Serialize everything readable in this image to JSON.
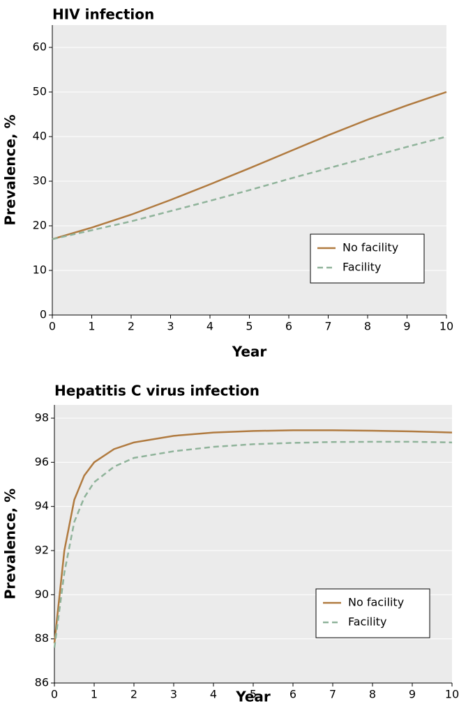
{
  "chart_data": [
    {
      "type": "line",
      "title": "HIV infection",
      "x_label": "Year",
      "y_label": "Prevalence, %",
      "x": [
        0,
        1,
        2,
        3,
        4,
        5,
        6,
        7,
        8,
        9,
        10
      ],
      "series": [
        {
          "name": "No facility",
          "color": "#b07a3f",
          "style": "solid",
          "values": [
            17,
            19.6,
            22.5,
            25.8,
            29.3,
            32.9,
            36.6,
            40.3,
            43.8,
            47,
            50
          ]
        },
        {
          "name": "Facility",
          "color": "#8fb39a",
          "style": "dashed",
          "values": [
            17,
            19,
            21,
            23.3,
            25.6,
            28,
            30.5,
            32.9,
            35.3,
            37.7,
            40
          ]
        }
      ],
      "xlim": [
        0,
        10
      ],
      "xticks": [
        0,
        1,
        2,
        3,
        4,
        5,
        6,
        7,
        8,
        9,
        10
      ],
      "ylim": [
        0,
        65
      ],
      "yticks": [
        0,
        10,
        20,
        30,
        40,
        50,
        60
      ],
      "grid": true,
      "legend": "lower right"
    },
    {
      "type": "line",
      "title": "Hepatitis C virus infection",
      "x_label": "Year",
      "y_label": "Prevalence, %",
      "x": [
        0,
        0.25,
        0.5,
        0.75,
        1,
        1.5,
        2,
        3,
        4,
        5,
        6,
        7,
        8,
        9,
        10
      ],
      "series": [
        {
          "name": "No facility",
          "color": "#b07a3f",
          "style": "solid",
          "values": [
            87.8,
            92,
            94.3,
            95.4,
            96,
            96.6,
            96.9,
            97.2,
            97.35,
            97.42,
            97.45,
            97.45,
            97.43,
            97.4,
            97.35
          ]
        },
        {
          "name": "Facility",
          "color": "#8fb39a",
          "style": "dashed",
          "values": [
            87.6,
            91,
            93.3,
            94.4,
            95.1,
            95.8,
            96.2,
            96.5,
            96.7,
            96.82,
            96.88,
            96.92,
            96.93,
            96.93,
            96.9
          ]
        }
      ],
      "xlim": [
        0,
        10
      ],
      "xticks": [
        0,
        1,
        2,
        3,
        4,
        5,
        6,
        7,
        8,
        9,
        10
      ],
      "ylim": [
        86,
        98.6
      ],
      "yticks": [
        86,
        88,
        90,
        92,
        94,
        96,
        98
      ],
      "grid": true,
      "legend": "lower right"
    }
  ]
}
